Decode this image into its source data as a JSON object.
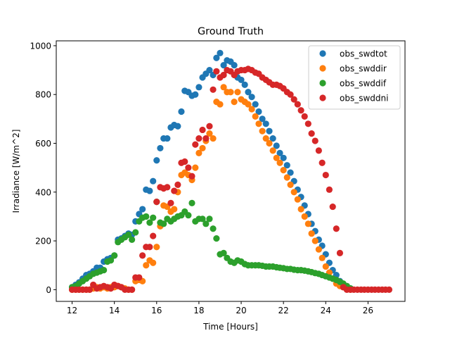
{
  "chart_data": {
    "type": "scatter",
    "title": "Ground Truth",
    "xlabel": "Time [Hours]",
    "ylabel": "Irradiance [W/m^2]",
    "xlim": [
      11.25,
      27.75
    ],
    "ylim": [
      -48,
      1020
    ],
    "xticks": [
      12,
      14,
      16,
      18,
      20,
      22,
      24,
      26
    ],
    "yticks": [
      0,
      200,
      400,
      600,
      800,
      1000
    ],
    "grid": false,
    "legend": "top-right",
    "series": [
      {
        "name": "obs_swdtot",
        "color": "#1f77b4",
        "x": [
          12.0,
          12.17,
          12.33,
          12.5,
          12.67,
          12.83,
          13.0,
          13.17,
          13.33,
          13.5,
          13.67,
          13.83,
          14.0,
          14.17,
          14.33,
          14.5,
          14.67,
          14.83,
          15.0,
          15.17,
          15.33,
          15.5,
          15.67,
          15.83,
          16.0,
          16.17,
          16.33,
          16.5,
          16.67,
          16.83,
          17.0,
          17.17,
          17.33,
          17.5,
          17.67,
          17.83,
          18.0,
          18.17,
          18.33,
          18.5,
          18.67,
          18.83,
          19.0,
          19.17,
          19.33,
          19.5,
          19.67,
          19.83,
          20.0,
          20.17,
          20.33,
          20.5,
          20.67,
          20.83,
          21.0,
          21.17,
          21.33,
          21.5,
          21.67,
          21.83,
          22.0,
          22.17,
          22.33,
          22.5,
          22.67,
          22.83,
          23.0,
          23.17,
          23.33,
          23.5,
          23.67,
          23.83,
          24.0,
          24.17,
          24.33,
          24.5,
          24.67,
          24.83,
          25.0,
          25.17
        ],
        "y": [
          10,
          20,
          30,
          45,
          60,
          65,
          75,
          90,
          90,
          115,
          125,
          130,
          140,
          205,
          210,
          220,
          230,
          225,
          280,
          310,
          330,
          410,
          405,
          445,
          530,
          580,
          620,
          620,
          665,
          675,
          670,
          730,
          815,
          810,
          795,
          800,
          830,
          870,
          885,
          900,
          880,
          950,
          970,
          920,
          940,
          935,
          920,
          870,
          860,
          840,
          810,
          790,
          760,
          730,
          700,
          680,
          650,
          620,
          590,
          560,
          540,
          510,
          480,
          445,
          410,
          380,
          345,
          310,
          270,
          240,
          205,
          180,
          145,
          110,
          80,
          60,
          35,
          20,
          10,
          5
        ]
      },
      {
        "name": "obs_swddir",
        "color": "#ff7f0e",
        "x": [
          12.0,
          12.17,
          12.33,
          12.5,
          12.67,
          12.83,
          13.0,
          13.17,
          13.33,
          13.5,
          13.67,
          13.83,
          14.0,
          14.17,
          14.33,
          14.5,
          14.67,
          14.83,
          15.0,
          15.17,
          15.33,
          15.5,
          15.67,
          15.83,
          16.0,
          16.17,
          16.33,
          16.5,
          16.67,
          16.83,
          17.0,
          17.17,
          17.33,
          17.5,
          17.67,
          17.83,
          18.0,
          18.17,
          18.33,
          18.5,
          18.67,
          18.83,
          19.0,
          19.17,
          19.33,
          19.5,
          19.67,
          19.83,
          20.0,
          20.17,
          20.33,
          20.5,
          20.67,
          20.83,
          21.0,
          21.17,
          21.33,
          21.5,
          21.67,
          21.83,
          22.0,
          22.17,
          22.33,
          22.5,
          22.67,
          22.83,
          23.0,
          23.17,
          23.33,
          23.5,
          23.67,
          23.83,
          24.0,
          24.17,
          24.33,
          24.5,
          24.67,
          24.83,
          25.0,
          25.17
        ],
        "y": [
          0,
          0,
          0,
          0,
          0,
          0,
          5,
          10,
          5,
          10,
          5,
          10,
          10,
          15,
          10,
          5,
          0,
          0,
          35,
          40,
          35,
          100,
          120,
          110,
          175,
          260,
          345,
          340,
          320,
          330,
          400,
          470,
          480,
          470,
          450,
          500,
          560,
          580,
          610,
          640,
          620,
          770,
          760,
          830,
          810,
          810,
          770,
          810,
          780,
          770,
          760,
          740,
          710,
          680,
          650,
          620,
          600,
          570,
          540,
          520,
          490,
          460,
          430,
          400,
          370,
          330,
          300,
          270,
          230,
          200,
          165,
          130,
          95,
          70,
          45,
          25,
          15,
          10,
          5,
          0
        ]
      },
      {
        "name": "obs_swddif",
        "color": "#2ca02c",
        "x": [
          12.0,
          12.17,
          12.33,
          12.5,
          12.67,
          12.83,
          13.0,
          13.17,
          13.33,
          13.5,
          13.67,
          13.83,
          14.0,
          14.17,
          14.33,
          14.5,
          14.67,
          14.83,
          15.0,
          15.17,
          15.33,
          15.5,
          15.67,
          15.83,
          16.0,
          16.17,
          16.33,
          16.5,
          16.67,
          16.83,
          17.0,
          17.17,
          17.33,
          17.5,
          17.67,
          17.83,
          18.0,
          18.17,
          18.33,
          18.5,
          18.67,
          18.83,
          19.0,
          19.17,
          19.33,
          19.5,
          19.67,
          19.83,
          20.0,
          20.17,
          20.33,
          20.5,
          20.67,
          20.83,
          21.0,
          21.17,
          21.33,
          21.5,
          21.67,
          21.83,
          22.0,
          22.17,
          22.33,
          22.5,
          22.67,
          22.83,
          23.0,
          23.17,
          23.33,
          23.5,
          23.67,
          23.83,
          24.0,
          24.17,
          24.33,
          24.5,
          24.67,
          24.83,
          25.0,
          25.17
        ],
        "y": [
          10,
          15,
          25,
          35,
          45,
          55,
          65,
          70,
          75,
          80,
          115,
          120,
          140,
          195,
          205,
          215,
          225,
          205,
          235,
          280,
          295,
          300,
          275,
          295,
          360,
          275,
          270,
          290,
          280,
          290,
          300,
          305,
          320,
          305,
          355,
          280,
          290,
          290,
          270,
          290,
          250,
          210,
          145,
          150,
          130,
          115,
          110,
          120,
          115,
          105,
          100,
          100,
          100,
          100,
          98,
          95,
          95,
          95,
          92,
          90,
          88,
          85,
          85,
          82,
          80,
          80,
          78,
          75,
          72,
          68,
          65,
          60,
          55,
          50,
          45,
          40,
          32,
          25,
          15,
          5
        ]
      },
      {
        "name": "obs_swddni",
        "color": "#d62728",
        "x": [
          12.0,
          12.17,
          12.33,
          12.5,
          12.67,
          12.83,
          13.0,
          13.17,
          13.33,
          13.5,
          13.67,
          13.83,
          14.0,
          14.17,
          14.33,
          14.5,
          14.67,
          14.83,
          15.0,
          15.17,
          15.33,
          15.5,
          15.67,
          15.83,
          16.0,
          16.17,
          16.33,
          16.5,
          16.67,
          16.83,
          17.0,
          17.17,
          17.33,
          17.5,
          17.67,
          17.83,
          18.0,
          18.17,
          18.33,
          18.5,
          18.67,
          18.83,
          19.0,
          19.17,
          19.33,
          19.5,
          19.67,
          19.83,
          20.0,
          20.17,
          20.33,
          20.5,
          20.67,
          20.83,
          21.0,
          21.17,
          21.33,
          21.5,
          21.67,
          21.83,
          22.0,
          22.17,
          22.33,
          22.5,
          22.67,
          22.83,
          23.0,
          23.17,
          23.33,
          23.5,
          23.67,
          23.83,
          24.0,
          24.17,
          24.33,
          24.5,
          24.67,
          24.83,
          25.0,
          25.17,
          25.33,
          25.5,
          25.67,
          25.83,
          26.0,
          26.17,
          26.33,
          26.5,
          26.67,
          26.83,
          27.0
        ],
        "y": [
          0,
          0,
          0,
          0,
          0,
          0,
          20,
          5,
          10,
          15,
          10,
          5,
          20,
          15,
          10,
          0,
          0,
          0,
          50,
          50,
          140,
          175,
          175,
          220,
          360,
          420,
          415,
          420,
          355,
          405,
          430,
          520,
          525,
          500,
          465,
          595,
          620,
          655,
          620,
          670,
          820,
          895,
          870,
          880,
          900,
          895,
          880,
          895,
          900,
          900,
          905,
          900,
          890,
          885,
          870,
          860,
          850,
          840,
          840,
          835,
          825,
          810,
          800,
          780,
          760,
          735,
          710,
          680,
          640,
          610,
          570,
          520,
          470,
          410,
          340,
          250,
          150,
          10,
          0,
          0,
          0,
          0,
          0,
          0,
          0,
          0,
          0,
          0,
          0,
          0,
          0
        ]
      }
    ]
  }
}
